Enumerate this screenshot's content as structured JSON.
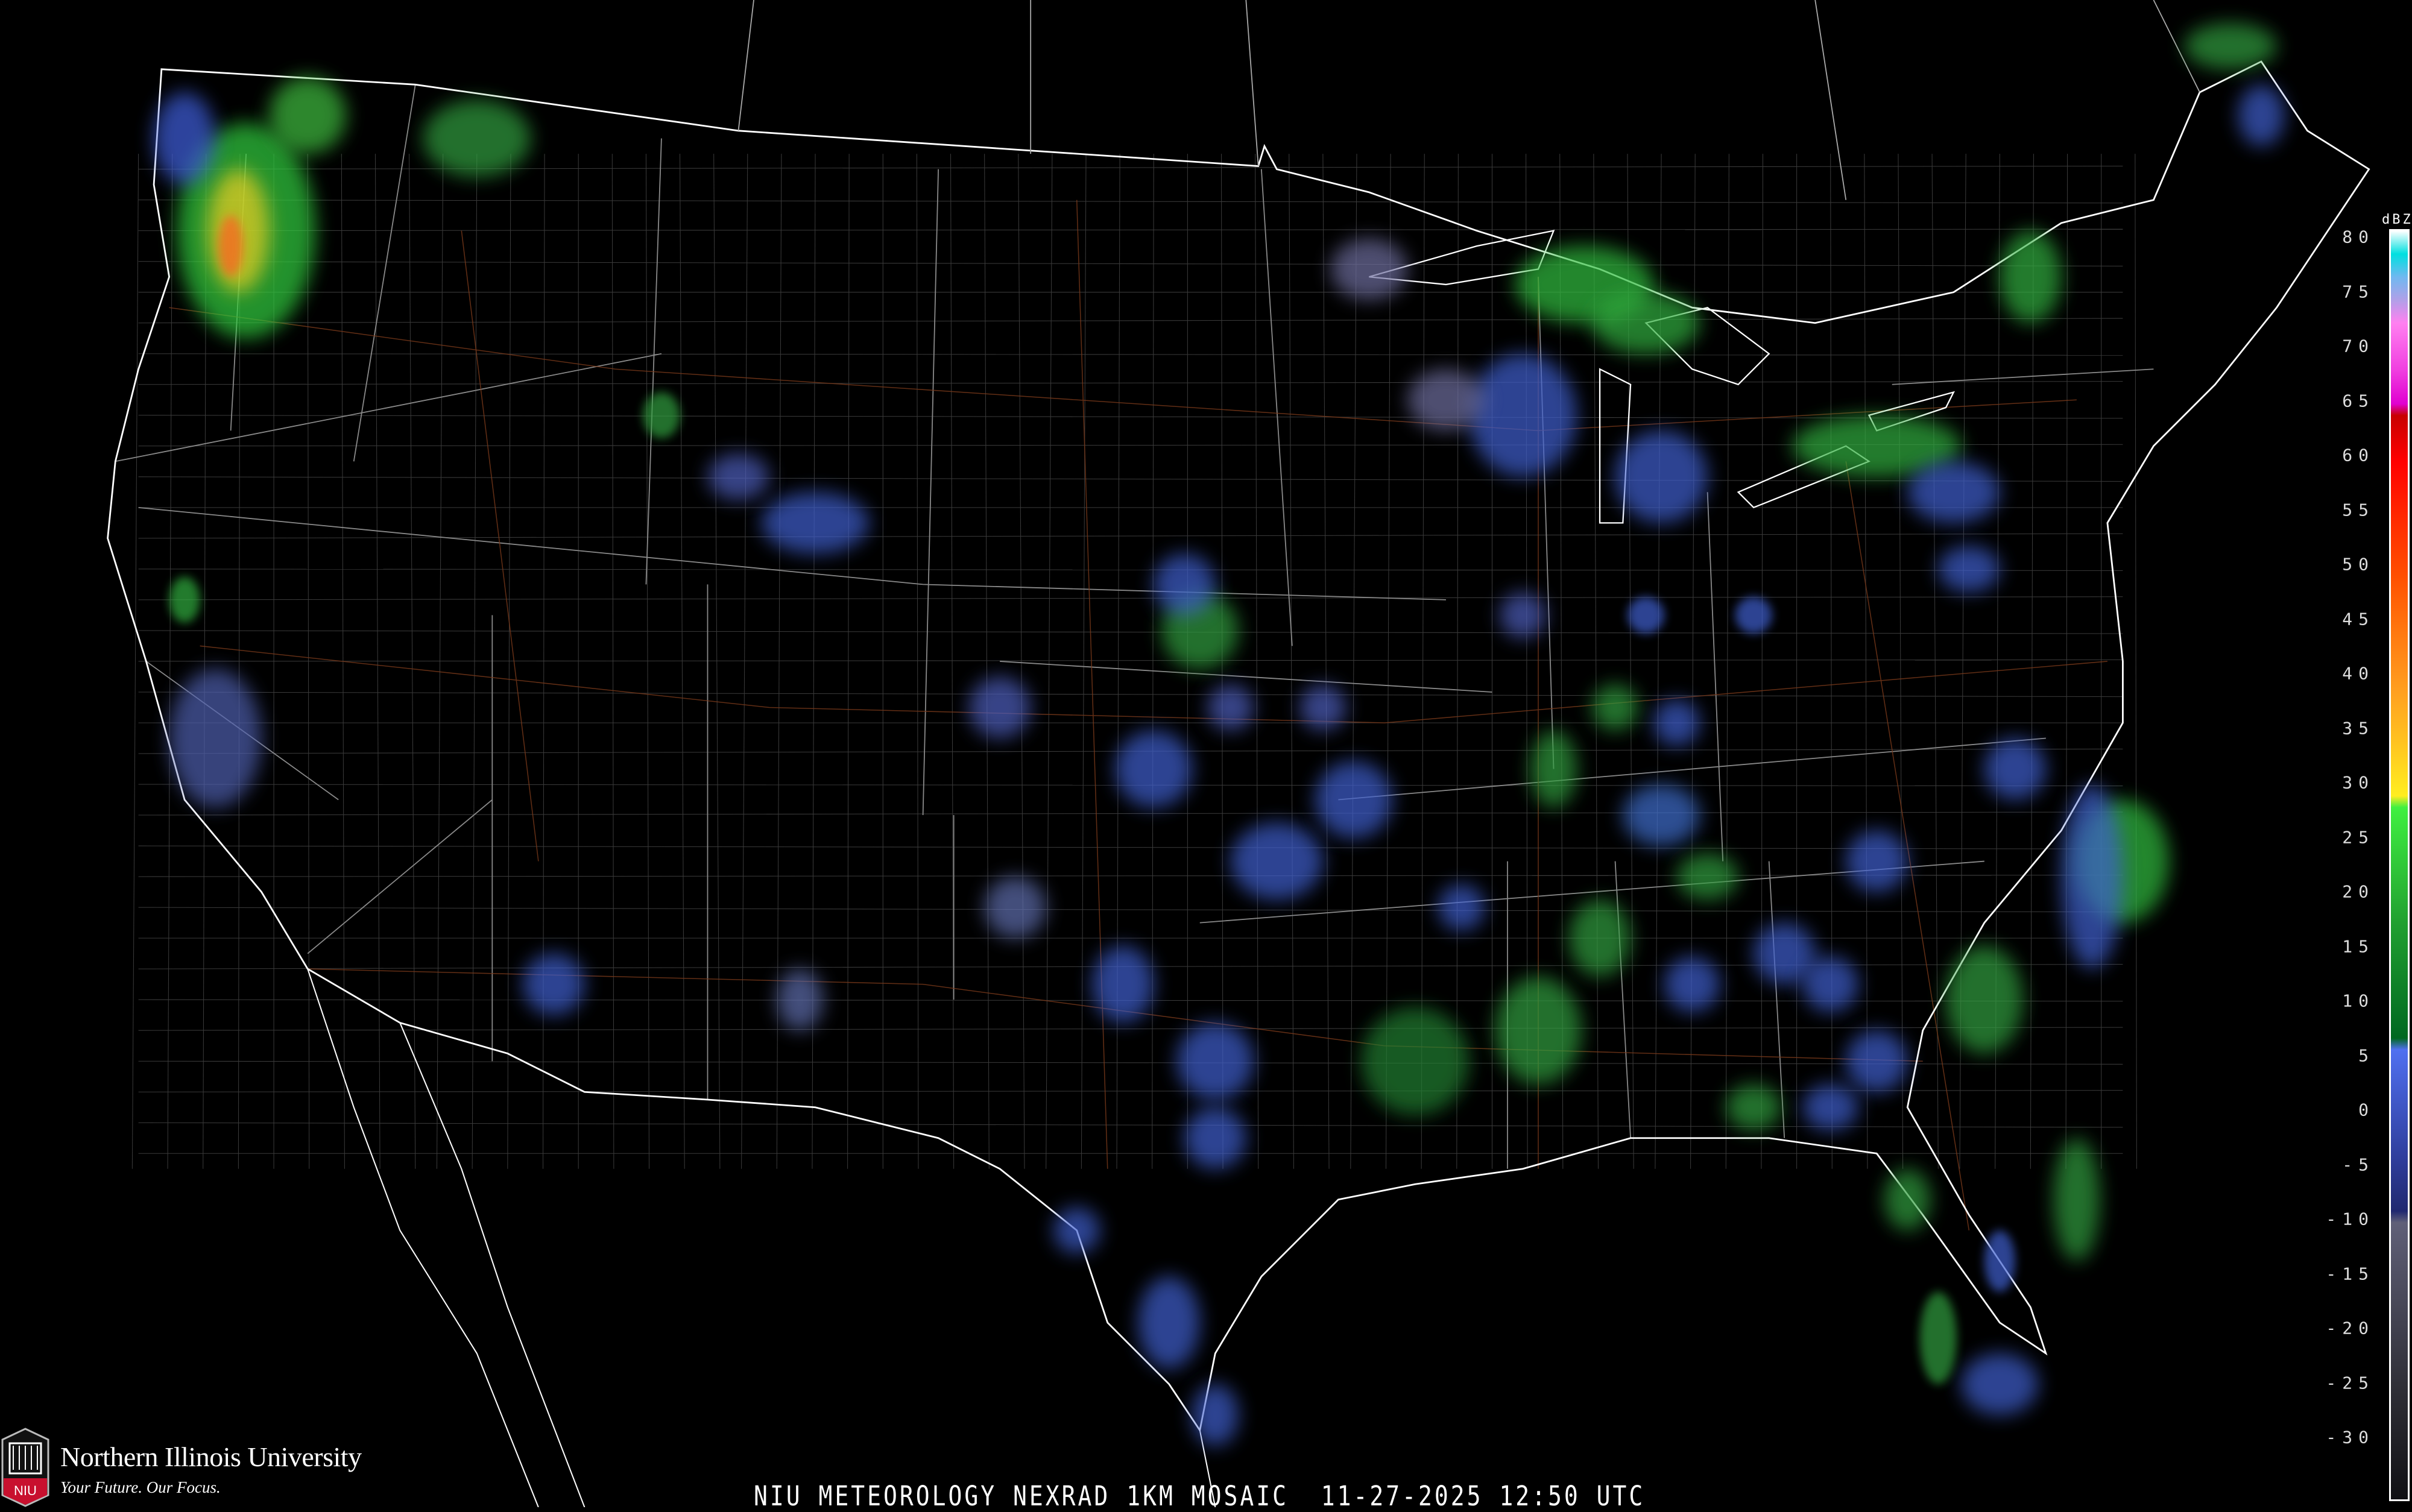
{
  "title": "NIU METEOROLOGY NEXRAD 1KM MOSAIC",
  "date": "11-27-2025",
  "time": "12:50 UTC",
  "caption": "NIU METEOROLOGY NEXRAD 1KM MOSAIC  11-27-2025 12:50 UTC",
  "legend": {
    "unit": "dBZ",
    "ticks": [
      "80",
      "75",
      "70",
      "65",
      "60",
      "55",
      "50",
      "45",
      "40",
      "35",
      "30",
      "25",
      "20",
      "15",
      "10",
      "5",
      "0",
      "-5",
      "-10",
      "-15",
      "-20",
      "-25",
      "-30"
    ],
    "colors": [
      {
        "dbz": 80,
        "color": "#ffffff"
      },
      {
        "dbz": 78,
        "color": "#00e0e0"
      },
      {
        "dbz": 76,
        "color": "#70b8f0"
      },
      {
        "dbz": 74,
        "color": "#b0a0e8"
      },
      {
        "dbz": 72,
        "color": "#ff80f0"
      },
      {
        "dbz": 68,
        "color": "#f040e0"
      },
      {
        "dbz": 65,
        "color": "#e000d0"
      },
      {
        "dbz": 64,
        "color": "#c80000"
      },
      {
        "dbz": 60,
        "color": "#ff0000"
      },
      {
        "dbz": 55,
        "color": "#ff2a00"
      },
      {
        "dbz": 50,
        "color": "#ff5000"
      },
      {
        "dbz": 45,
        "color": "#ff7a10"
      },
      {
        "dbz": 40,
        "color": "#ffa020"
      },
      {
        "dbz": 36,
        "color": "#ffc020"
      },
      {
        "dbz": 31,
        "color": "#ffee20"
      },
      {
        "dbz": 30,
        "color": "#40f040"
      },
      {
        "dbz": 20,
        "color": "#20a030"
      },
      {
        "dbz": 10,
        "color": "#006820"
      },
      {
        "dbz": 9,
        "color": "#5070f0"
      },
      {
        "dbz": 0,
        "color": "#3040a0"
      },
      {
        "dbz": -5,
        "color": "#202870"
      },
      {
        "dbz": -6,
        "color": "#606078"
      },
      {
        "dbz": -20,
        "color": "#303038"
      },
      {
        "dbz": -30,
        "color": "#101014"
      }
    ]
  },
  "logo": {
    "name": "Northern Illinois University",
    "tagline": "Your Future. Our Focus.",
    "badge": "NIU",
    "brand_color": "#c8102e"
  }
}
